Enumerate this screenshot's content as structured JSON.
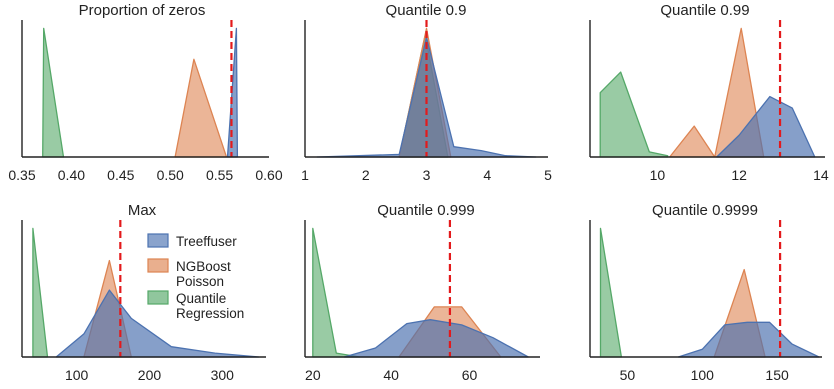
{
  "colors": {
    "treeffuser": "#4c72b0",
    "ngboost": "#dd8452",
    "quantile": "#55a868",
    "reference": "#e31a1c",
    "axis": "#222222"
  },
  "legend": {
    "panel": 3,
    "entries": [
      {
        "series": "treeffuser",
        "lines": [
          "Treeffuser"
        ]
      },
      {
        "series": "ngboost",
        "lines": [
          "NGBoost",
          "Poisson"
        ]
      },
      {
        "series": "quantile",
        "lines": [
          "Quantile",
          "Regression"
        ]
      }
    ]
  },
  "chart_data": [
    {
      "type": "area",
      "title": "Proportion of zeros",
      "xlim": [
        0.35,
        0.6
      ],
      "ylim": [
        0,
        1.05
      ],
      "xticks": [
        0.35,
        0.4,
        0.45,
        0.5,
        0.55,
        0.6
      ],
      "xtick_labels": [
        "0.35",
        "0.40",
        "0.45",
        "0.50",
        "0.55",
        "0.60"
      ],
      "reference_x": 0.562,
      "series": [
        {
          "key": "quantile",
          "points": [
            [
              0.371,
              0
            ],
            [
              0.372,
              1.0
            ],
            [
              0.392,
              0
            ]
          ]
        },
        {
          "key": "ngboost",
          "points": [
            [
              0.505,
              0
            ],
            [
              0.524,
              0.76
            ],
            [
              0.557,
              0
            ]
          ]
        },
        {
          "key": "treeffuser",
          "points": [
            [
              0.558,
              0
            ],
            [
              0.567,
              1.0
            ],
            [
              0.568,
              0
            ]
          ]
        }
      ]
    },
    {
      "type": "area",
      "title": "Quantile  0.9",
      "xlim": [
        1,
        5
      ],
      "ylim": [
        0,
        1.05
      ],
      "xticks": [
        1,
        2,
        3,
        4,
        5
      ],
      "xtick_labels": [
        "1",
        "2",
        "3",
        "4",
        "5"
      ],
      "reference_x": 3.0,
      "series": [
        {
          "key": "quantile",
          "points": [
            [
              2.55,
              0
            ],
            [
              2.98,
              0.95
            ],
            [
              3.35,
              0
            ]
          ]
        },
        {
          "key": "ngboost",
          "points": [
            [
              2.55,
              0
            ],
            [
              3.0,
              1.0
            ],
            [
              3.4,
              0
            ]
          ]
        },
        {
          "key": "treeffuser",
          "points": [
            [
              1.2,
              0
            ],
            [
              2.55,
              0.02
            ],
            [
              3.0,
              0.93
            ],
            [
              3.45,
              0.08
            ],
            [
              3.9,
              0.05
            ],
            [
              4.3,
              0.01
            ],
            [
              4.8,
              0
            ]
          ]
        }
      ]
    },
    {
      "type": "area",
      "title": "Quantile  0.99",
      "xlim": [
        8.35,
        14.1
      ],
      "ylim": [
        0,
        1.05
      ],
      "xticks": [
        10,
        12,
        14
      ],
      "xtick_labels": [
        "10",
        "12",
        "14"
      ],
      "reference_x": 13.0,
      "series": [
        {
          "key": "quantile",
          "points": [
            [
              8.6,
              0
            ],
            [
              8.6,
              0.5
            ],
            [
              9.1,
              0.66
            ],
            [
              9.8,
              0.04
            ],
            [
              10.25,
              0.01
            ]
          ]
        },
        {
          "key": "ngboost",
          "points": [
            [
              10.3,
              0
            ],
            [
              10.9,
              0.24
            ],
            [
              11.4,
              0
            ],
            [
              12.05,
              1.0
            ],
            [
              12.6,
              0
            ]
          ]
        },
        {
          "key": "treeffuser",
          "points": [
            [
              11.45,
              0
            ],
            [
              12.0,
              0.17
            ],
            [
              12.75,
              0.47
            ],
            [
              13.3,
              0.38
            ],
            [
              13.85,
              0
            ]
          ]
        }
      ]
    },
    {
      "type": "area",
      "title": "Max",
      "xlim": [
        25,
        360
      ],
      "ylim": [
        0,
        1.05
      ],
      "xticks": [
        100,
        200,
        300
      ],
      "xtick_labels": [
        "100",
        "200",
        "300"
      ],
      "reference_x": 160,
      "series": [
        {
          "key": "quantile",
          "points": [
            [
              40,
              0
            ],
            [
              40,
              1.0
            ],
            [
              60,
              0
            ]
          ]
        },
        {
          "key": "ngboost",
          "points": [
            [
              110,
              0
            ],
            [
              145,
              0.75
            ],
            [
              175,
              0
            ]
          ]
        },
        {
          "key": "treeffuser",
          "points": [
            [
              72,
              0
            ],
            [
              110,
              0.18
            ],
            [
              145,
              0.52
            ],
            [
              175,
              0.3
            ],
            [
              230,
              0.08
            ],
            [
              290,
              0.03
            ],
            [
              350,
              0
            ]
          ]
        }
      ]
    },
    {
      "type": "area",
      "title": "Quantile  0.999",
      "xlim": [
        18,
        78
      ],
      "ylim": [
        0,
        1.05
      ],
      "xticks": [
        20,
        40,
        60
      ],
      "xtick_labels": [
        "20",
        "40",
        "60"
      ],
      "reference_x": 55,
      "series": [
        {
          "key": "quantile",
          "points": [
            [
              20,
              0
            ],
            [
              20,
              1.0
            ],
            [
              26,
              0.03
            ],
            [
              32,
              0
            ]
          ]
        },
        {
          "key": "ngboost",
          "points": [
            [
              42,
              0
            ],
            [
              51,
              0.39
            ],
            [
              58,
              0.39
            ],
            [
              68,
              0
            ]
          ]
        },
        {
          "key": "treeffuser",
          "points": [
            [
              28,
              0
            ],
            [
              36,
              0.07
            ],
            [
              44,
              0.26
            ],
            [
              50,
              0.29
            ],
            [
              58,
              0.25
            ],
            [
              66,
              0.15
            ],
            [
              75,
              0
            ]
          ]
        }
      ]
    },
    {
      "type": "area",
      "title": "Quantile  0.9999",
      "xlim": [
        25,
        180
      ],
      "ylim": [
        0,
        1.05
      ],
      "xticks": [
        50,
        100,
        150
      ],
      "xtick_labels": [
        "50",
        "100",
        "150"
      ],
      "reference_x": 152,
      "series": [
        {
          "key": "quantile",
          "points": [
            [
              32,
              0
            ],
            [
              32,
              1.0
            ],
            [
              46,
              0
            ]
          ]
        },
        {
          "key": "ngboost",
          "points": [
            [
              108,
              0
            ],
            [
              128,
              0.68
            ],
            [
              142,
              0
            ]
          ]
        },
        {
          "key": "treeffuser",
          "points": [
            [
              84,
              0
            ],
            [
              100,
              0.06
            ],
            [
              115,
              0.25
            ],
            [
              130,
              0.27
            ],
            [
              145,
              0.27
            ],
            [
              160,
              0.1
            ],
            [
              178,
              0
            ]
          ]
        }
      ]
    }
  ]
}
